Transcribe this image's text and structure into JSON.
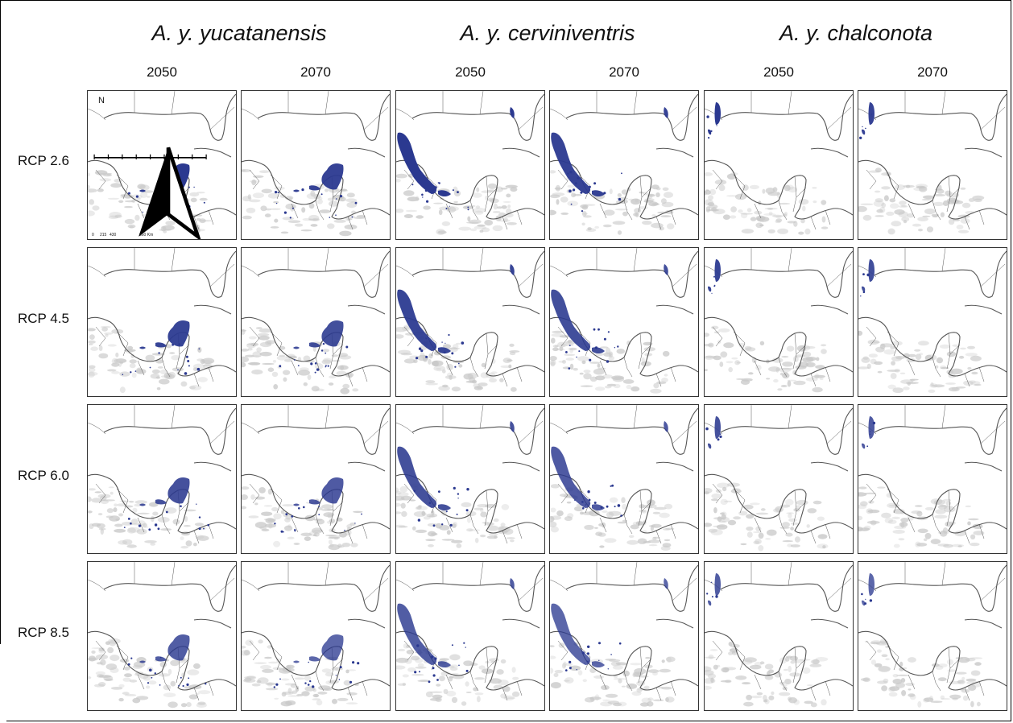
{
  "species": [
    {
      "name": "A. y. yucatanensis",
      "region": "yucatan"
    },
    {
      "name": "A. y. cerviniventris",
      "region": "gulf"
    },
    {
      "name": "A. y. chalconota",
      "region": "texas"
    }
  ],
  "years": [
    "2050",
    "2070"
  ],
  "scenarios": [
    "RCP 2.6",
    "RCP 4.5",
    "RCP 6.0",
    "RCP 8.5"
  ],
  "map": {
    "north_label": "N",
    "scale_labels": [
      "0",
      "215",
      "430",
      "860 Km"
    ],
    "colors": {
      "suitable_habitat": "#2b3990",
      "land": "#ffffff",
      "borders": "#555555",
      "elevation_shading": "#c8c8c8"
    }
  }
}
